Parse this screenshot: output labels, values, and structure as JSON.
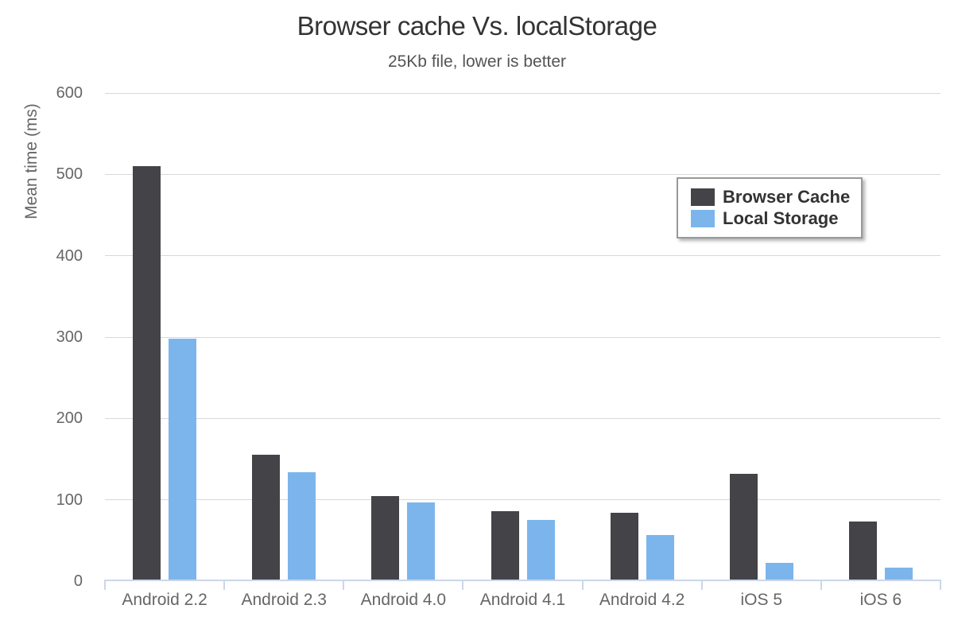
{
  "chart_data": {
    "type": "bar",
    "title": "Browser cache Vs. localStorage",
    "subtitle": "25Kb file, lower is better",
    "ylabel": "Mean time (ms)",
    "xlabel": "",
    "ylim": [
      0,
      600
    ],
    "ytick_interval": 100,
    "grid": true,
    "legend_position": "right-upper",
    "categories": [
      "Android 2.2",
      "Android 2.3",
      "Android 4.0",
      "Android 4.1",
      "Android 4.2",
      "iOS 5",
      "iOS 6"
    ],
    "series": [
      {
        "name": "Browser Cache",
        "color": "#434348",
        "values": [
          510,
          154,
          103,
          84,
          82,
          130,
          72
        ]
      },
      {
        "name": "Local Storage",
        "color": "#7cb5ec",
        "values": [
          297,
          132,
          95,
          74,
          55,
          21,
          15
        ]
      }
    ],
    "colors": {
      "gridline": "#d8d8d8",
      "axis_line": "#ccd6eb",
      "title_text": "#333333",
      "subtitle_text": "#555555",
      "axis_label_text": "#666666",
      "legend_text": "#333333",
      "legend_border": "#999999",
      "background": "#ffffff"
    }
  }
}
